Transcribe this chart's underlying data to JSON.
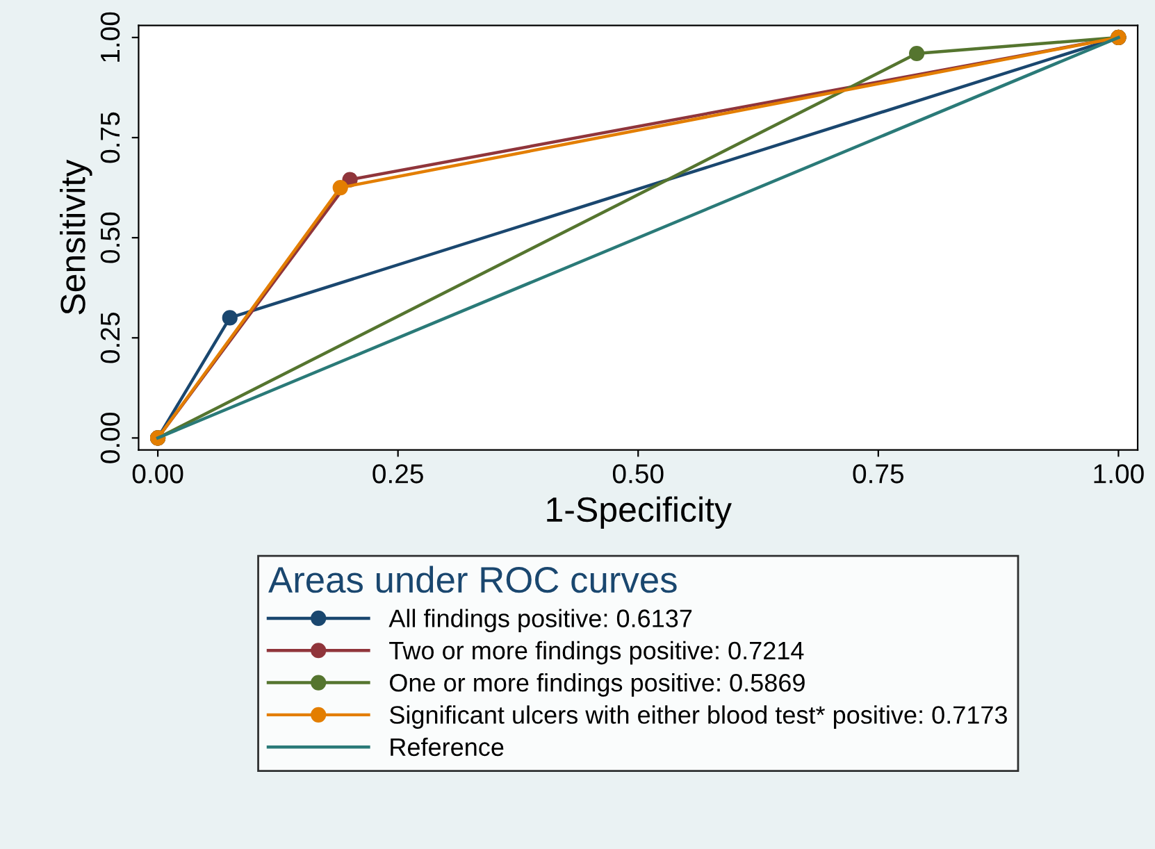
{
  "chart_data": {
    "type": "line",
    "xlabel": "1-Specificity",
    "ylabel": "Sensitivity",
    "legend_title": "Areas under ROC curves",
    "legend": "bottom",
    "grid": false,
    "marker": "circle",
    "line_style": "solid",
    "xlim": [
      -0.02,
      1.02
    ],
    "ylim": [
      -0.03,
      1.03
    ],
    "xticks": [
      {
        "value": 0,
        "label": "0.00"
      },
      {
        "value": 0.25,
        "label": "0.25"
      },
      {
        "value": 0.5,
        "label": "0.50"
      },
      {
        "value": 0.75,
        "label": "0.75"
      },
      {
        "value": 1,
        "label": "1.00"
      }
    ],
    "yticks": [
      {
        "value": 0,
        "label": "0.00"
      },
      {
        "value": 0.25,
        "label": "0.25"
      },
      {
        "value": 0.5,
        "label": "0.50"
      },
      {
        "value": 0.75,
        "label": "0.75"
      },
      {
        "value": 1,
        "label": "1.00"
      }
    ],
    "series": [
      {
        "name": "All findings positive: 0.6137",
        "color": "#1a476f",
        "x": [
          0,
          0.075,
          1
        ],
        "values": [
          0,
          0.3,
          1
        ]
      },
      {
        "name": "Two or more findings positive: 0.7214",
        "color": "#90353b",
        "x": [
          0,
          0.2,
          1
        ],
        "values": [
          0,
          0.645,
          1
        ]
      },
      {
        "name": "One or more findings positive: 0.5869",
        "color": "#55752f",
        "x": [
          0,
          0.79,
          1
        ],
        "values": [
          0,
          0.96,
          1
        ]
      },
      {
        "name": "Significant ulcers with either blood test* positive: 0.7173",
        "color": "#e37e00",
        "x": [
          0,
          0.19,
          1
        ],
        "values": [
          0,
          0.625,
          1
        ]
      },
      {
        "name": "Reference",
        "color": "#2a7a78",
        "x": [
          0,
          1
        ],
        "values": [
          0,
          1
        ],
        "marker": "none"
      }
    ]
  }
}
